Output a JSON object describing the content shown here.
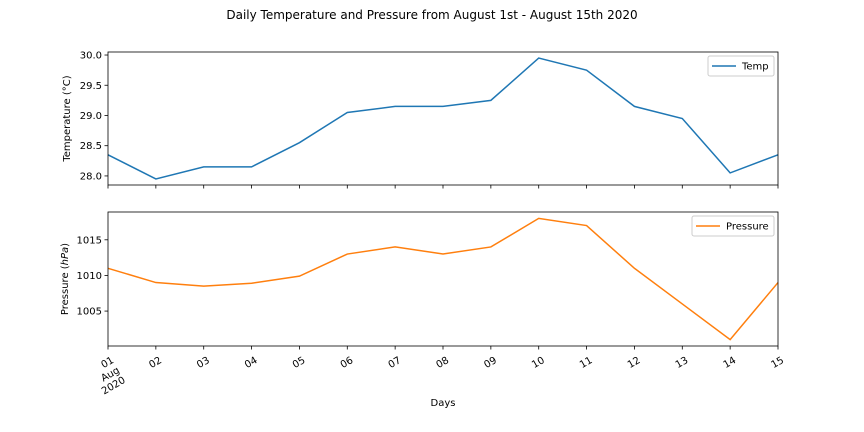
{
  "figure": {
    "title": "Daily Temperature and Pressure from August 1st - August 15th 2020"
  },
  "chart_data": [
    {
      "type": "line",
      "title": "",
      "xlabel": "",
      "ylabel": "Temperature (°C)",
      "x": [
        "2020-08-01",
        "2020-08-02",
        "2020-08-03",
        "2020-08-04",
        "2020-08-05",
        "2020-08-06",
        "2020-08-07",
        "2020-08-08",
        "2020-08-09",
        "2020-08-10",
        "2020-08-11",
        "2020-08-12",
        "2020-08-13",
        "2020-08-14",
        "2020-08-15"
      ],
      "series": [
        {
          "name": "Temp",
          "color": "#1f77b4",
          "values": [
            28.35,
            27.95,
            28.15,
            28.15,
            28.55,
            29.05,
            29.15,
            29.15,
            29.25,
            29.95,
            29.75,
            29.15,
            28.95,
            28.05,
            28.35
          ]
        }
      ],
      "ylim": [
        27.85,
        30.05
      ],
      "yticks": [
        "28.0",
        "28.5",
        "29.0",
        "29.5",
        "30.0"
      ],
      "legend": "top-right",
      "grid": false
    },
    {
      "type": "line",
      "title": "",
      "xlabel": "Days",
      "ylabel": "Pressure (hPa)",
      "x": [
        "2020-08-01",
        "2020-08-02",
        "2020-08-03",
        "2020-08-04",
        "2020-08-05",
        "2020-08-06",
        "2020-08-07",
        "2020-08-08",
        "2020-08-09",
        "2020-08-10",
        "2020-08-11",
        "2020-08-12",
        "2020-08-13",
        "2020-08-14",
        "2020-08-15"
      ],
      "series": [
        {
          "name": "Pressure",
          "color": "#ff7f0e",
          "values": [
            1011,
            1009,
            1008.5,
            1008.9,
            1009.9,
            1013,
            1014,
            1013,
            1014,
            1018,
            1017,
            1011,
            1006,
            1001,
            1009
          ]
        }
      ],
      "ylim": [
        1000.1,
        1018.9
      ],
      "yticks": [
        "1005",
        "1010",
        "1015"
      ],
      "xticks": [
        "01\nAug\n2020",
        "02",
        "03",
        "04",
        "05",
        "06",
        "07",
        "08",
        "09",
        "10",
        "11",
        "12",
        "13",
        "14",
        "15"
      ],
      "legend": "top-right",
      "grid": false
    }
  ]
}
